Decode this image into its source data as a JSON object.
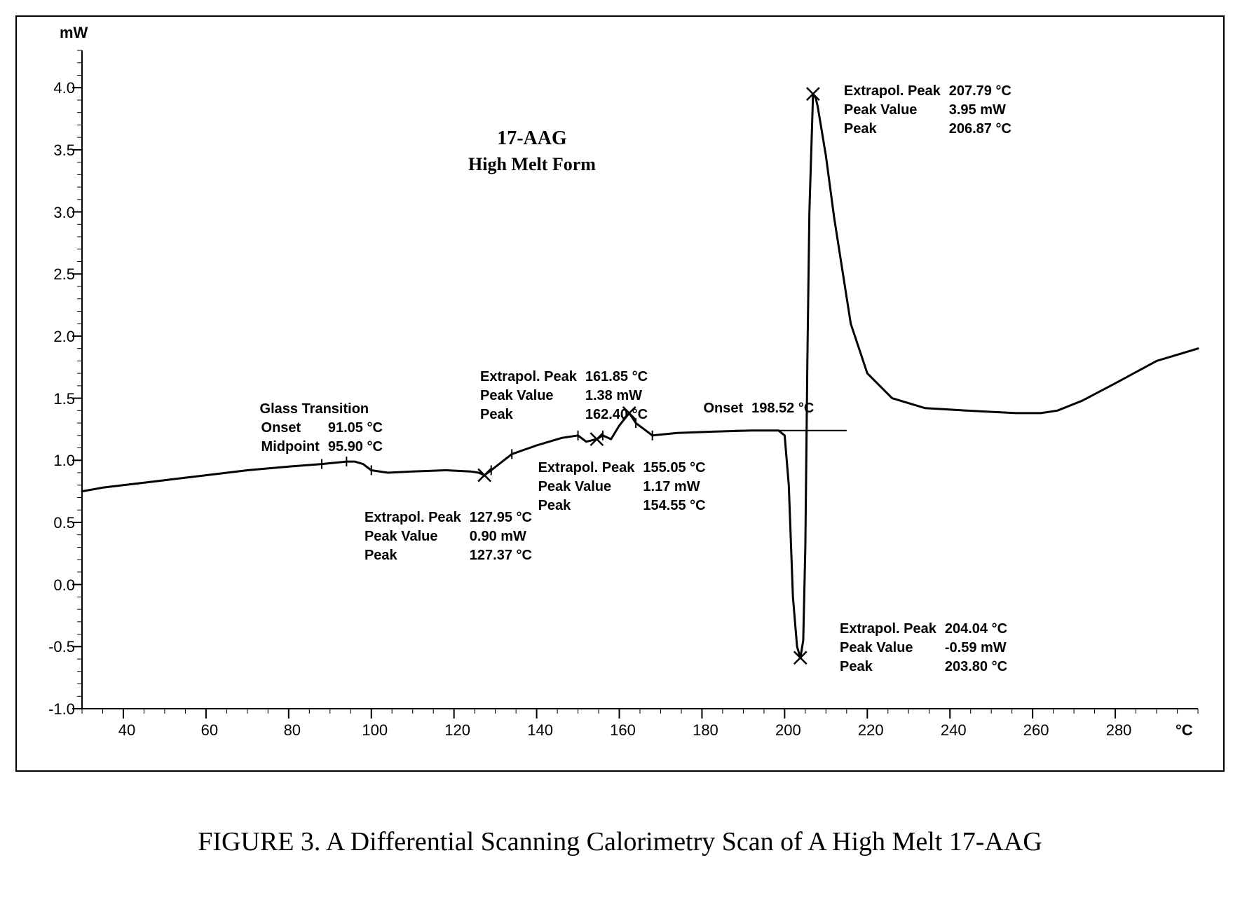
{
  "caption": "FIGURE 3.  A Differential Scanning Calorimetry Scan of A High Melt 17-AAG",
  "title_line1": "17-AAG",
  "title_line2": "High Melt Form",
  "title_fontsize_1": 28,
  "title_fontsize_2": 26,
  "chart": {
    "type": "line",
    "background_color": "#ffffff",
    "line_color": "#000000",
    "line_width": 3,
    "axis_color": "#000000",
    "axis_width": 2,
    "tick_font_size": 22,
    "y_unit": "mW",
    "x_unit": "°C",
    "xlim": [
      30,
      300
    ],
    "ylim": [
      -1.0,
      4.3
    ],
    "x_major_ticks": [
      40,
      60,
      80,
      100,
      120,
      140,
      160,
      180,
      200,
      220,
      240,
      260,
      280
    ],
    "y_major_ticks": [
      -1.0,
      -0.5,
      0.0,
      0.5,
      1.0,
      1.5,
      2.0,
      2.5,
      3.0,
      3.5,
      4.0
    ],
    "x_minor_step": 5,
    "y_minor_step": 0.1,
    "series": [
      [
        30,
        0.75
      ],
      [
        35,
        0.78
      ],
      [
        40,
        0.8
      ],
      [
        50,
        0.84
      ],
      [
        60,
        0.88
      ],
      [
        70,
        0.92
      ],
      [
        80,
        0.95
      ],
      [
        88,
        0.97
      ],
      [
        94,
        0.99
      ],
      [
        96,
        0.99
      ],
      [
        98,
        0.97
      ],
      [
        100,
        0.92
      ],
      [
        104,
        0.9
      ],
      [
        110,
        0.91
      ],
      [
        118,
        0.92
      ],
      [
        124,
        0.91
      ],
      [
        126,
        0.9
      ],
      [
        127.37,
        0.88
      ],
      [
        129,
        0.92
      ],
      [
        134,
        1.05
      ],
      [
        140,
        1.12
      ],
      [
        146,
        1.18
      ],
      [
        150,
        1.2
      ],
      [
        152,
        1.15
      ],
      [
        154.55,
        1.17
      ],
      [
        156,
        1.2
      ],
      [
        158,
        1.17
      ],
      [
        160,
        1.28
      ],
      [
        162.4,
        1.38
      ],
      [
        164,
        1.3
      ],
      [
        168,
        1.2
      ],
      [
        174,
        1.22
      ],
      [
        182,
        1.23
      ],
      [
        192,
        1.24
      ],
      [
        198.52,
        1.24
      ],
      [
        200,
        1.2
      ],
      [
        201,
        0.8
      ],
      [
        202,
        -0.1
      ],
      [
        203,
        -0.5
      ],
      [
        203.8,
        -0.59
      ],
      [
        204.5,
        -0.45
      ],
      [
        205,
        0.3
      ],
      [
        205.5,
        1.8
      ],
      [
        206,
        3.0
      ],
      [
        206.5,
        3.55
      ],
      [
        206.87,
        3.95
      ],
      [
        207.5,
        3.92
      ],
      [
        208,
        3.85
      ],
      [
        210,
        3.45
      ],
      [
        212,
        2.95
      ],
      [
        216,
        2.1
      ],
      [
        220,
        1.7
      ],
      [
        226,
        1.5
      ],
      [
        234,
        1.42
      ],
      [
        244,
        1.4
      ],
      [
        256,
        1.38
      ],
      [
        262,
        1.38
      ],
      [
        266,
        1.4
      ],
      [
        272,
        1.48
      ],
      [
        280,
        1.62
      ],
      [
        290,
        1.8
      ],
      [
        300,
        1.9
      ]
    ],
    "markers": [
      {
        "x": 127.37,
        "y": 0.88,
        "style": "x"
      },
      {
        "x": 154.55,
        "y": 1.17,
        "style": "x"
      },
      {
        "x": 162.4,
        "y": 1.38,
        "style": "x"
      },
      {
        "x": 203.8,
        "y": -0.59,
        "style": "x"
      },
      {
        "x": 206.87,
        "y": 3.95,
        "style": "x"
      }
    ],
    "onset_line": {
      "y": 1.24,
      "x1": 188,
      "x2": 215
    }
  },
  "annotations": {
    "glass_transition": {
      "header": "Glass Transition",
      "rows": [
        [
          "Onset",
          "91.05 °C"
        ],
        [
          "Midpoint",
          "95.90 °C"
        ]
      ]
    },
    "peak_127": {
      "rows": [
        [
          "Extrapol. Peak",
          "127.95 °C"
        ],
        [
          "Peak Value",
          "0.90 mW"
        ],
        [
          "Peak",
          "127.37 °C"
        ]
      ]
    },
    "peak_155": {
      "rows": [
        [
          "Extrapol. Peak",
          "155.05 °C"
        ],
        [
          "Peak Value",
          "1.17 mW"
        ],
        [
          "Peak",
          "154.55 °C"
        ]
      ]
    },
    "peak_161": {
      "rows": [
        [
          "Extrapol. Peak",
          "161.85 °C"
        ],
        [
          "Peak Value",
          "1.38 mW"
        ],
        [
          "Peak",
          "162.40 °C"
        ]
      ]
    },
    "onset_198": {
      "rows": [
        [
          "Onset",
          "198.52 °C"
        ]
      ]
    },
    "peak_204": {
      "rows": [
        [
          "Extrapol. Peak",
          "204.04 °C"
        ],
        [
          "Peak Value",
          "-0.59 mW"
        ],
        [
          "Peak",
          "203.80 °C"
        ]
      ]
    },
    "peak_207": {
      "rows": [
        [
          "Extrapol. Peak",
          "207.79 °C"
        ],
        [
          "Peak Value",
          "3.95 mW"
        ],
        [
          "Peak",
          "206.87 °C"
        ]
      ]
    }
  }
}
